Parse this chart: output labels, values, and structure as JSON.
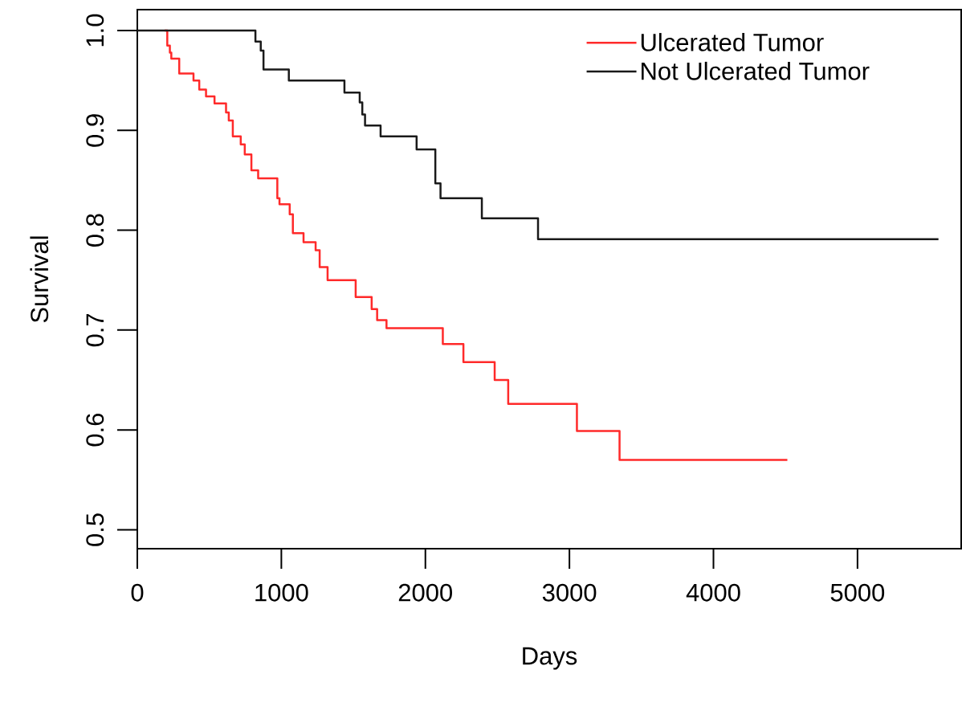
{
  "chart_data": {
    "type": "step",
    "xlabel": "Days",
    "ylabel": "Survival",
    "xlim": [
      0,
      5720
    ],
    "ylim": [
      0.481,
      1.021
    ],
    "xticks": [
      0,
      1000,
      2000,
      3000,
      4000,
      5000
    ],
    "yticks": [
      0.5,
      0.6,
      0.7,
      0.8,
      0.9,
      {
        "value": 1.0,
        "label": "1.0"
      }
    ],
    "grid": false,
    "legend": "top right",
    "series": [
      {
        "name": "Ulcerated Tumor",
        "color": "#ff2a2a",
        "x": [
          189,
          208,
          226,
          236,
          291,
          390,
          430,
          477,
          536,
          616,
          635,
          663,
          718,
          746,
          792,
          839,
          972,
          987,
          1058,
          1080,
          1154,
          1238,
          1266,
          1321,
          1516,
          1627,
          1665,
          1730,
          2121,
          2264,
          2481,
          2575,
          3052,
          3348,
          4513
        ],
        "values": [
          1.0,
          0.985,
          0.978,
          0.972,
          0.957,
          0.95,
          0.941,
          0.934,
          0.927,
          0.918,
          0.91,
          0.894,
          0.886,
          0.876,
          0.86,
          0.852,
          0.832,
          0.826,
          0.816,
          0.797,
          0.788,
          0.78,
          0.763,
          0.75,
          0.733,
          0.721,
          0.71,
          0.702,
          0.686,
          0.668,
          0.65,
          0.626,
          0.599,
          0.57,
          0.57
        ]
      },
      {
        "name": "Not Ulcerated Tumor",
        "color": "#1a1a1a",
        "x": [
          0,
          820,
          857,
          876,
          1052,
          1438,
          1544,
          1562,
          1581,
          1689,
          1939,
          2069,
          2105,
          2392,
          2782,
          5562
        ],
        "values": [
          1.0,
          0.989,
          0.98,
          0.961,
          0.95,
          0.938,
          0.928,
          0.916,
          0.905,
          0.894,
          0.881,
          0.847,
          0.832,
          0.812,
          0.791,
          0.791
        ]
      }
    ]
  }
}
